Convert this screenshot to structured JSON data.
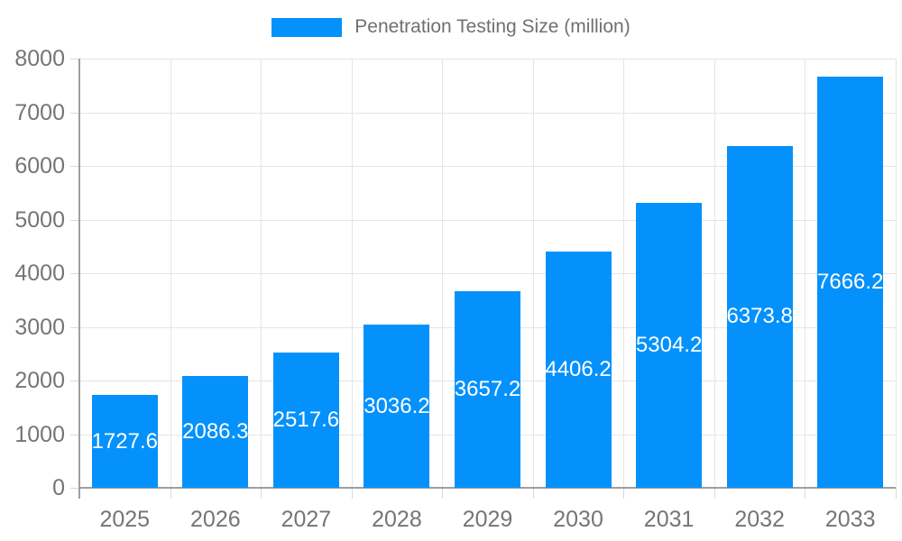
{
  "legend": {
    "label": "Penetration Testing Size (million)"
  },
  "chart_data": {
    "type": "bar",
    "title": "Penetration Testing Size (million)",
    "series_name": "Penetration Testing Size (million)",
    "categories": [
      "2025",
      "2026",
      "2027",
      "2028",
      "2029",
      "2030",
      "2031",
      "2032",
      "2033"
    ],
    "values": [
      1727.6,
      2086.3,
      2517.6,
      3036.2,
      3657.2,
      4406.2,
      5304.2,
      6373.8,
      7666.2
    ],
    "value_labels": [
      "1727.6",
      "2086.3",
      "2517.6",
      "3036.2",
      "3657.2",
      "4406.2",
      "5304.2",
      "6373.8",
      "7666.2"
    ],
    "xlabel": "",
    "ylabel": "",
    "ylim": [
      0,
      8000
    ],
    "yticks": [
      0,
      1000,
      2000,
      3000,
      4000,
      5000,
      6000,
      7000,
      8000
    ],
    "ytick_labels": [
      "0",
      "1000",
      "2000",
      "3000",
      "4000",
      "5000",
      "6000",
      "7000",
      "8000"
    ],
    "grid": true,
    "legend_position": "top-center",
    "bar_color": "#0591fb",
    "value_label_color": "#ffffff",
    "axis_text_color": "#757575",
    "legend_text_color": "#707070",
    "grid_color": "#e5e5e5",
    "tick_color": "#d9d9d9",
    "axis_line_color": "#9e9e9e"
  }
}
